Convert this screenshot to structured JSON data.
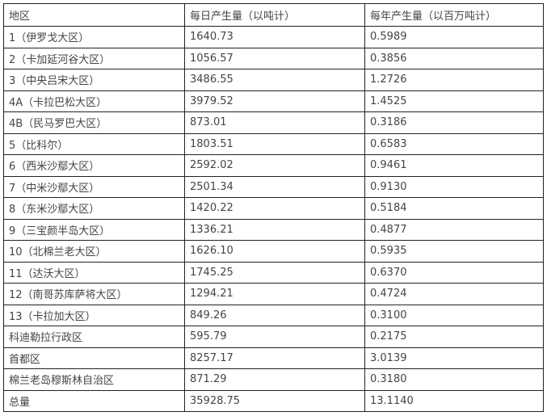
{
  "table": {
    "headers": [
      "地区",
      "每日产生量（以吨计）",
      "每年产生量（以百万吨计）"
    ],
    "rows": [
      [
        "1（伊罗戈大区）",
        "1640.73",
        "0.5989"
      ],
      [
        "2（卡加延河谷大区）",
        "1056.57",
        "0.3856"
      ],
      [
        "3（中央吕宋大区）",
        "3486.55",
        "1.2726"
      ],
      [
        "4A（卡拉巴松大区）",
        "3979.52",
        "1.4525"
      ],
      [
        "4B（民马罗巴大区）",
        "873.01",
        "0.3186"
      ],
      [
        "5（比科尔）",
        "1803.51",
        "0.6583"
      ],
      [
        "6（西米沙鄢大区）",
        "2592.02",
        "0.9461"
      ],
      [
        "7（中米沙鄢大区）",
        "2501.34",
        "0.9130"
      ],
      [
        "8（东米沙鄢大区）",
        "1420.22",
        "0.5184"
      ],
      [
        "9（三宝颜半岛大区）",
        "1336.21",
        "0.4877"
      ],
      [
        "10（北棉兰老大区）",
        "1626.10",
        "0.5935"
      ],
      [
        "11（达沃大区）",
        "1745.25",
        "0.6370"
      ],
      [
        "12（南哥苏库萨将大区）",
        "1294.21",
        "0.4724"
      ],
      [
        "13（卡拉加大区）",
        "849.26",
        "0.3100"
      ],
      [
        "科迪勒拉行政区",
        "595.79",
        "0.2175"
      ],
      [
        "首都区",
        "8257.17",
        "3.0139"
      ],
      [
        "棉兰老岛穆斯林自治区",
        "871.29",
        "0.3180"
      ],
      [
        "总量",
        "35928.75",
        "13.1140"
      ]
    ]
  }
}
